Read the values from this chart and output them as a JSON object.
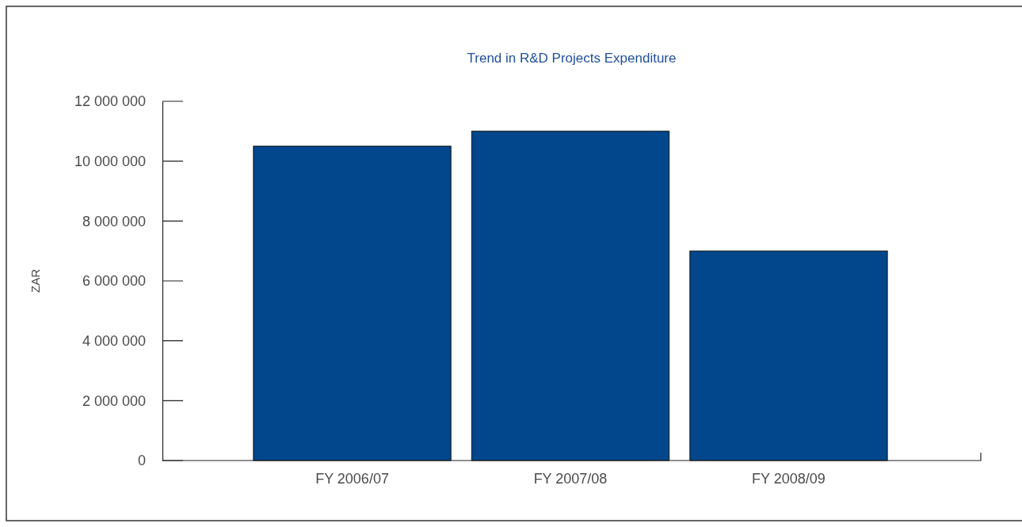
{
  "chart_data": {
    "type": "bar",
    "title": "Trend in R&D Projects Expenditure",
    "ylabel": "ZAR",
    "categories": [
      "FY 2006/07",
      "FY 2007/08",
      "FY 2008/09"
    ],
    "values": [
      10500000,
      11000000,
      7000000
    ],
    "color": "#02468c",
    "ylim": [
      0,
      12000000
    ],
    "yticks": [
      0,
      {
        "value": 2000000,
        "label": "2 000 000"
      },
      {
        "value": 4000000,
        "label": "4 000 000"
      },
      {
        "value": 6000000,
        "label": "6 000 000"
      },
      {
        "value": 8000000,
        "label": "8 000 000"
      },
      {
        "value": 10000000,
        "label": "10 000 000"
      },
      {
        "value": 12000000,
        "label": "12 000 000"
      }
    ]
  }
}
